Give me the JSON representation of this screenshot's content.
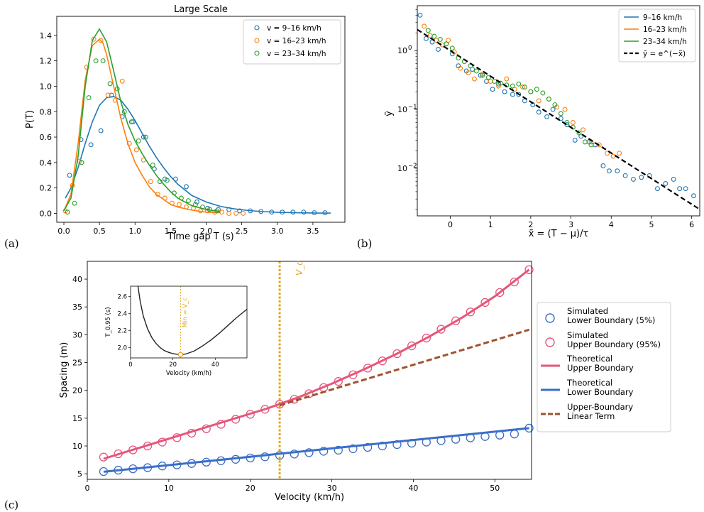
{
  "chart_data": [
    {
      "id": "a",
      "type": "scatter",
      "panel_label": "(a)",
      "title": "Large Scale",
      "xlabel": "Time gap T (s)",
      "ylabel": "P(T)",
      "xlim": [
        -0.1,
        3.95
      ],
      "ylim": [
        -0.07,
        1.55
      ],
      "xticks": [
        0.0,
        0.5,
        1.0,
        1.5,
        2.0,
        2.5,
        3.0,
        3.5
      ],
      "xtick_labels": [
        "0.0",
        "0.5",
        "1.0",
        "1.5",
        "2.0",
        "2.5",
        "3.0",
        "3.5"
      ],
      "yticks": [
        0.0,
        0.2,
        0.4,
        0.6,
        0.8,
        1.0,
        1.2,
        1.4
      ],
      "ytick_labels": [
        "0.0",
        "0.2",
        "0.4",
        "0.6",
        "0.8",
        "1.0",
        "1.2",
        "1.4"
      ],
      "legend_position": "top-right",
      "series": [
        {
          "name": "v = 9–16 km/h",
          "color": "#1f77b4",
          "x": [
            0.08,
            0.24,
            0.38,
            0.52,
            0.67,
            0.82,
            0.97,
            1.12,
            1.27,
            1.42,
            1.57,
            1.72,
            1.87,
            2.02,
            2.17,
            2.32,
            2.47,
            2.62,
            2.77,
            2.92,
            3.07,
            3.22,
            3.37,
            3.52,
            3.67
          ],
          "y": [
            0.3,
            0.58,
            0.54,
            0.65,
            0.93,
            0.76,
            0.72,
            0.6,
            0.35,
            0.27,
            0.27,
            0.21,
            0.09,
            0.04,
            0.03,
            0.03,
            0.02,
            0.02,
            0.015,
            0.01,
            0.01,
            0.01,
            0.01,
            0.005,
            0.005
          ],
          "fit_x": [
            0.02,
            0.1,
            0.2,
            0.3,
            0.4,
            0.5,
            0.6,
            0.7,
            0.8,
            0.9,
            1.0,
            1.1,
            1.2,
            1.3,
            1.4,
            1.5,
            1.6,
            1.8,
            2.0,
            2.2,
            2.4,
            2.6,
            2.8,
            3.0,
            3.2,
            3.4,
            3.6,
            3.75
          ],
          "fit_y": [
            0.12,
            0.2,
            0.36,
            0.55,
            0.72,
            0.85,
            0.91,
            0.92,
            0.89,
            0.82,
            0.73,
            0.63,
            0.53,
            0.44,
            0.36,
            0.29,
            0.23,
            0.14,
            0.09,
            0.055,
            0.035,
            0.022,
            0.014,
            0.009,
            0.006,
            0.004,
            0.002,
            0.002
          ]
        },
        {
          "name": "v = 16–23 km/h",
          "color": "#ff7f0e",
          "x": [
            0.02,
            0.12,
            0.22,
            0.32,
            0.42,
            0.52,
            0.62,
            0.72,
            0.82,
            0.92,
            1.02,
            1.12,
            1.22,
            1.32,
            1.42,
            1.52,
            1.62,
            1.72,
            1.82,
            1.92,
            2.02,
            2.12,
            2.22,
            2.32,
            2.42,
            2.52
          ],
          "y": [
            0.02,
            0.22,
            0.41,
            1.15,
            1.37,
            1.36,
            0.93,
            0.89,
            1.04,
            0.55,
            0.5,
            0.42,
            0.25,
            0.15,
            0.12,
            0.08,
            0.07,
            0.05,
            0.04,
            0.02,
            0.02,
            0.01,
            0.01,
            0.0,
            0.0,
            0.0
          ],
          "fit_x": [
            0.0,
            0.1,
            0.2,
            0.3,
            0.4,
            0.5,
            0.55,
            0.6,
            0.7,
            0.8,
            0.9,
            1.0,
            1.1,
            1.2,
            1.3,
            1.4,
            1.5,
            1.6,
            1.8,
            2.0,
            2.2
          ],
          "fit_y": [
            0.02,
            0.15,
            0.55,
            1.05,
            1.32,
            1.37,
            1.34,
            1.25,
            1.0,
            0.75,
            0.55,
            0.4,
            0.3,
            0.21,
            0.15,
            0.11,
            0.07,
            0.05,
            0.025,
            0.01,
            0.005
          ]
        },
        {
          "name": "v = 23–34 km/h",
          "color": "#2ca02c",
          "x": [
            0.05,
            0.15,
            0.25,
            0.35,
            0.45,
            0.55,
            0.65,
            0.75,
            0.85,
            0.95,
            1.05,
            1.15,
            1.25,
            1.35,
            1.45,
            1.55,
            1.65,
            1.75,
            1.85,
            1.95,
            2.05,
            2.15
          ],
          "y": [
            0.01,
            0.08,
            0.4,
            0.91,
            1.2,
            1.2,
            1.02,
            0.98,
            0.8,
            0.72,
            0.57,
            0.6,
            0.38,
            0.25,
            0.26,
            0.16,
            0.12,
            0.1,
            0.07,
            0.05,
            0.03,
            0.02
          ],
          "fit_x": [
            0.0,
            0.1,
            0.2,
            0.3,
            0.4,
            0.5,
            0.6,
            0.7,
            0.8,
            0.9,
            1.0,
            1.1,
            1.2,
            1.3,
            1.4,
            1.5,
            1.6,
            1.8,
            2.0,
            2.2
          ],
          "fit_y": [
            0.02,
            0.12,
            0.45,
            1.0,
            1.36,
            1.45,
            1.35,
            1.12,
            0.88,
            0.7,
            0.57,
            0.47,
            0.38,
            0.3,
            0.23,
            0.17,
            0.12,
            0.06,
            0.03,
            0.015
          ]
        }
      ]
    },
    {
      "id": "b",
      "type": "scatter",
      "panel_label": "(b)",
      "title": "",
      "xlabel": "x̃ = (T − μ)/τ",
      "ylabel": "ỹ",
      "yscale": "log",
      "xlim": [
        -0.82,
        6.2
      ],
      "ylim": [
        0.00155,
        5.8
      ],
      "xticks": [
        0,
        1,
        2,
        3,
        4,
        5,
        6
      ],
      "xtick_labels": [
        "0",
        "1",
        "2",
        "3",
        "4",
        "5",
        "6"
      ],
      "yticks": [
        0.01,
        0.1,
        1
      ],
      "ytick_labels_base": [
        "10",
        "10",
        "10"
      ],
      "ytick_labels_exp": [
        "−2",
        "−1",
        "0"
      ],
      "legend_position": "top-right",
      "series": [
        {
          "name": "9–16 km/h",
          "color": "#1f77b4",
          "x": [
            -0.75,
            -0.6,
            -0.45,
            -0.3,
            -0.1,
            0.05,
            0.2,
            0.4,
            0.55,
            0.75,
            0.9,
            1.05,
            1.2,
            1.35,
            1.55,
            1.7,
            1.85,
            2.05,
            2.2,
            2.4,
            2.55,
            2.75,
            2.9,
            3.1,
            3.25,
            3.45,
            3.6,
            3.8,
            3.95,
            4.15,
            4.35,
            4.55,
            4.75,
            4.95,
            5.15,
            5.35,
            5.55,
            5.7,
            5.85,
            6.05
          ],
          "y": [
            4.0,
            1.6,
            1.4,
            1.05,
            1.3,
            0.88,
            0.55,
            0.45,
            0.48,
            0.38,
            0.3,
            0.22,
            0.27,
            0.2,
            0.18,
            0.18,
            0.14,
            0.12,
            0.09,
            0.075,
            0.1,
            0.07,
            0.055,
            0.03,
            0.035,
            0.028,
            0.025,
            0.011,
            0.009,
            0.009,
            0.0075,
            0.0065,
            0.007,
            0.0075,
            0.0045,
            0.0055,
            0.0065,
            0.0045,
            0.0045,
            0.0034
          ]
        },
        {
          "name": "16–23 km/h",
          "color": "#ff7f0e",
          "x": [
            -0.65,
            -0.5,
            -0.35,
            -0.2,
            -0.05,
            0.1,
            0.25,
            0.45,
            0.6,
            0.8,
            1.0,
            1.2,
            1.4,
            1.6,
            1.8,
            2.0,
            2.2,
            2.45,
            2.65,
            2.85,
            3.05,
            3.3,
            3.5,
            3.7,
            3.9,
            4.05,
            4.2
          ],
          "y": [
            2.6,
            1.8,
            1.5,
            1.25,
            1.5,
            0.95,
            0.5,
            0.42,
            0.33,
            0.4,
            0.3,
            0.25,
            0.33,
            0.22,
            0.24,
            0.2,
            0.14,
            0.15,
            0.11,
            0.1,
            0.06,
            0.045,
            0.028,
            0.025,
            0.018,
            0.016,
            0.018
          ]
        },
        {
          "name": "23–34 km/h",
          "color": "#2ca02c",
          "x": [
            -0.55,
            -0.4,
            -0.25,
            -0.1,
            0.05,
            0.2,
            0.35,
            0.5,
            0.65,
            0.8,
            0.95,
            1.1,
            1.25,
            1.4,
            1.55,
            1.7,
            1.85,
            2.0,
            2.15,
            2.3,
            2.45,
            2.6,
            2.75,
            2.9,
            3.05,
            3.2,
            3.35,
            3.5
          ],
          "y": [
            2.2,
            1.75,
            1.55,
            1.3,
            1.1,
            0.75,
            0.65,
            0.55,
            0.45,
            0.38,
            0.35,
            0.3,
            0.28,
            0.26,
            0.25,
            0.27,
            0.24,
            0.2,
            0.22,
            0.19,
            0.15,
            0.12,
            0.085,
            0.06,
            0.05,
            0.04,
            0.028,
            0.025
          ]
        },
        {
          "name": "ỹ = e^(−x̃)",
          "color": "#000000",
          "dashed": true,
          "fit_x": [
            -0.82,
            6.2
          ],
          "fit_y": [
            2.27,
            0.002
          ]
        }
      ]
    },
    {
      "id": "c",
      "type": "scatter",
      "panel_label": "(c)",
      "title": "",
      "xlabel": "Velocity (km/h)",
      "ylabel": "Spacing (m)",
      "xlim": [
        0,
        54.5
      ],
      "ylim": [
        4.0,
        43.2
      ],
      "xticks": [
        0,
        10,
        20,
        30,
        40,
        50
      ],
      "xtick_labels": [
        "0",
        "10",
        "20",
        "30",
        "40",
        "50"
      ],
      "yticks": [
        5,
        10,
        15,
        20,
        25,
        30,
        35,
        40
      ],
      "ytick_labels": [
        "5",
        "10",
        "15",
        "20",
        "25",
        "30",
        "35",
        "40"
      ],
      "vline_x": 23.6,
      "vline_label": "V_c",
      "legend_position": "right-outside",
      "series": [
        {
          "name": "Simulated\nLower Boundary (5%)",
          "color": "#3a6ec9",
          "marker": "circle",
          "x": [
            2.0,
            3.8,
            5.6,
            7.4,
            9.2,
            11.0,
            12.8,
            14.6,
            16.4,
            18.2,
            20.0,
            21.8,
            23.6,
            25.4,
            27.2,
            29.0,
            30.8,
            32.6,
            34.4,
            36.2,
            38.0,
            39.8,
            41.6,
            43.4,
            45.2,
            47.0,
            48.8,
            50.6,
            52.4,
            54.2
          ],
          "y": [
            5.4,
            5.65,
            5.9,
            6.1,
            6.4,
            6.6,
            6.85,
            7.1,
            7.35,
            7.6,
            7.85,
            8.05,
            8.3,
            8.55,
            8.8,
            9.05,
            9.25,
            9.5,
            9.75,
            10.0,
            10.25,
            10.5,
            10.7,
            10.95,
            11.2,
            11.45,
            11.7,
            11.95,
            12.15,
            13.2
          ]
        },
        {
          "name": "Simulated\nUpper Boundary (95%)",
          "color": "#e5567a",
          "marker": "circle",
          "x": [
            2.0,
            3.8,
            5.6,
            7.4,
            9.2,
            11.0,
            12.8,
            14.6,
            16.4,
            18.2,
            20.0,
            21.8,
            23.6,
            25.4,
            27.2,
            29.0,
            30.8,
            32.6,
            34.4,
            36.2,
            38.0,
            39.8,
            41.6,
            43.4,
            45.2,
            47.0,
            48.8,
            50.6,
            52.4,
            54.2
          ],
          "y": [
            8.0,
            8.6,
            9.3,
            10.0,
            10.7,
            11.5,
            12.3,
            13.1,
            13.9,
            14.8,
            15.7,
            16.6,
            17.5,
            18.4,
            19.4,
            20.5,
            21.6,
            22.8,
            24.0,
            25.3,
            26.6,
            28.0,
            29.4,
            31.0,
            32.5,
            34.1,
            35.8,
            37.6,
            39.5,
            41.7
          ]
        },
        {
          "name": "Theoretical\nUpper Boundary",
          "color": "#e5567a",
          "marker": "line",
          "fit_x": [
            2.0,
            6,
            10,
            14,
            18,
            22,
            26,
            30,
            34,
            38,
            42,
            46,
            50,
            54.2
          ],
          "fit_y": [
            7.7,
            9.5,
            11.3,
            13.1,
            14.9,
            16.7,
            18.8,
            21.2,
            23.8,
            26.6,
            29.7,
            33.1,
            36.9,
            41.7
          ]
        },
        {
          "name": "Theoretical\nLower Boundary",
          "color": "#3a6ec9",
          "marker": "line",
          "fit_x": [
            2.0,
            54.2
          ],
          "fit_y": [
            5.35,
            13.2
          ]
        },
        {
          "name": "Upper-Boundary\nLinear Term",
          "color": "#a0522d",
          "marker": "dashed",
          "fit_x": [
            23.6,
            54.2
          ],
          "fit_y": [
            17.3,
            30.9
          ]
        }
      ],
      "inset": {
        "xlabel": "Velocity (km/h)",
        "ylabel": "T_0.95 (s)",
        "xlim": [
          0,
          55
        ],
        "ylim": [
          1.88,
          2.72
        ],
        "xticks": [
          0,
          20,
          40
        ],
        "xtick_labels": [
          "0",
          "20",
          "40"
        ],
        "yticks": [
          2.0,
          2.2,
          2.4,
          2.6
        ],
        "ytick_labels": [
          "2.0",
          "2.2",
          "2.4",
          "2.6"
        ],
        "vline_label": "Min = V_c",
        "min_point": [
          23.6,
          1.92
        ],
        "curve_x": [
          3.5,
          4.5,
          6,
          8,
          10,
          12,
          14,
          16,
          18,
          20,
          22,
          23.6,
          26,
          30,
          34,
          38,
          42,
          46,
          50,
          55
        ],
        "curve_y": [
          2.72,
          2.55,
          2.37,
          2.22,
          2.12,
          2.05,
          2.0,
          1.965,
          1.945,
          1.93,
          1.922,
          1.92,
          1.925,
          1.96,
          2.02,
          2.09,
          2.17,
          2.26,
          2.35,
          2.45
        ]
      }
    }
  ]
}
